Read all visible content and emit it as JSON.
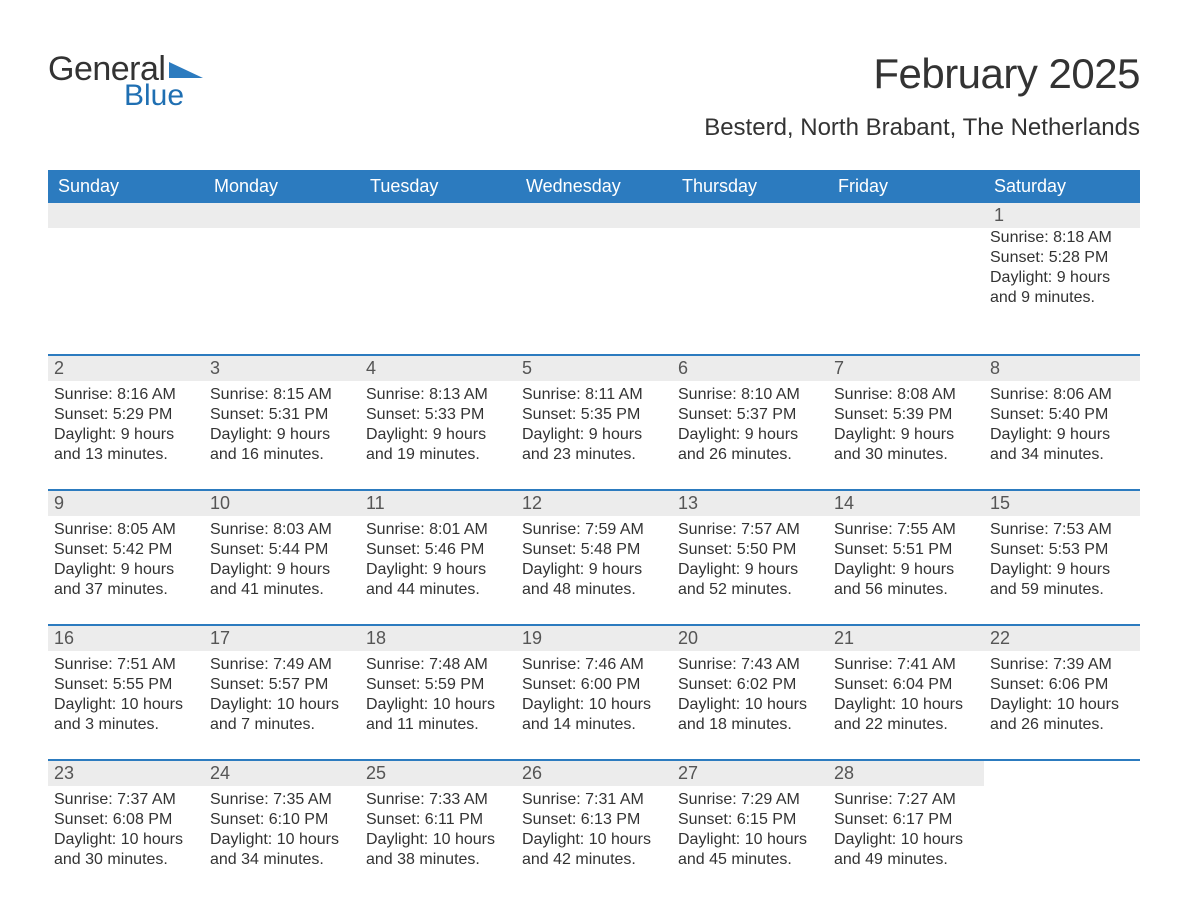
{
  "logo": {
    "text_general": "General",
    "text_blue": "Blue",
    "triangle_color": "#2c7bbf"
  },
  "header": {
    "title": "February 2025",
    "location": "Besterd, North Brabant, The Netherlands"
  },
  "colors": {
    "header_bg": "#2c7bbf",
    "header_text": "#ffffff",
    "daynum_bg": "#ececec",
    "body_text": "#333333",
    "week_border": "#2c7bbf",
    "page_bg": "#ffffff"
  },
  "day_names": [
    "Sunday",
    "Monday",
    "Tuesday",
    "Wednesday",
    "Thursday",
    "Friday",
    "Saturday"
  ],
  "weeks": [
    [
      {
        "day": "",
        "sunrise": "",
        "sunset": "",
        "daylight": ""
      },
      {
        "day": "",
        "sunrise": "",
        "sunset": "",
        "daylight": ""
      },
      {
        "day": "",
        "sunrise": "",
        "sunset": "",
        "daylight": ""
      },
      {
        "day": "",
        "sunrise": "",
        "sunset": "",
        "daylight": ""
      },
      {
        "day": "",
        "sunrise": "",
        "sunset": "",
        "daylight": ""
      },
      {
        "day": "",
        "sunrise": "",
        "sunset": "",
        "daylight": ""
      },
      {
        "day": "1",
        "sunrise": "Sunrise: 8:18 AM",
        "sunset": "Sunset: 5:28 PM",
        "daylight": "Daylight: 9 hours and 9 minutes."
      }
    ],
    [
      {
        "day": "2",
        "sunrise": "Sunrise: 8:16 AM",
        "sunset": "Sunset: 5:29 PM",
        "daylight": "Daylight: 9 hours and 13 minutes."
      },
      {
        "day": "3",
        "sunrise": "Sunrise: 8:15 AM",
        "sunset": "Sunset: 5:31 PM",
        "daylight": "Daylight: 9 hours and 16 minutes."
      },
      {
        "day": "4",
        "sunrise": "Sunrise: 8:13 AM",
        "sunset": "Sunset: 5:33 PM",
        "daylight": "Daylight: 9 hours and 19 minutes."
      },
      {
        "day": "5",
        "sunrise": "Sunrise: 8:11 AM",
        "sunset": "Sunset: 5:35 PM",
        "daylight": "Daylight: 9 hours and 23 minutes."
      },
      {
        "day": "6",
        "sunrise": "Sunrise: 8:10 AM",
        "sunset": "Sunset: 5:37 PM",
        "daylight": "Daylight: 9 hours and 26 minutes."
      },
      {
        "day": "7",
        "sunrise": "Sunrise: 8:08 AM",
        "sunset": "Sunset: 5:39 PM",
        "daylight": "Daylight: 9 hours and 30 minutes."
      },
      {
        "day": "8",
        "sunrise": "Sunrise: 8:06 AM",
        "sunset": "Sunset: 5:40 PM",
        "daylight": "Daylight: 9 hours and 34 minutes."
      }
    ],
    [
      {
        "day": "9",
        "sunrise": "Sunrise: 8:05 AM",
        "sunset": "Sunset: 5:42 PM",
        "daylight": "Daylight: 9 hours and 37 minutes."
      },
      {
        "day": "10",
        "sunrise": "Sunrise: 8:03 AM",
        "sunset": "Sunset: 5:44 PM",
        "daylight": "Daylight: 9 hours and 41 minutes."
      },
      {
        "day": "11",
        "sunrise": "Sunrise: 8:01 AM",
        "sunset": "Sunset: 5:46 PM",
        "daylight": "Daylight: 9 hours and 44 minutes."
      },
      {
        "day": "12",
        "sunrise": "Sunrise: 7:59 AM",
        "sunset": "Sunset: 5:48 PM",
        "daylight": "Daylight: 9 hours and 48 minutes."
      },
      {
        "day": "13",
        "sunrise": "Sunrise: 7:57 AM",
        "sunset": "Sunset: 5:50 PM",
        "daylight": "Daylight: 9 hours and 52 minutes."
      },
      {
        "day": "14",
        "sunrise": "Sunrise: 7:55 AM",
        "sunset": "Sunset: 5:51 PM",
        "daylight": "Daylight: 9 hours and 56 minutes."
      },
      {
        "day": "15",
        "sunrise": "Sunrise: 7:53 AM",
        "sunset": "Sunset: 5:53 PM",
        "daylight": "Daylight: 9 hours and 59 minutes."
      }
    ],
    [
      {
        "day": "16",
        "sunrise": "Sunrise: 7:51 AM",
        "sunset": "Sunset: 5:55 PM",
        "daylight": "Daylight: 10 hours and 3 minutes."
      },
      {
        "day": "17",
        "sunrise": "Sunrise: 7:49 AM",
        "sunset": "Sunset: 5:57 PM",
        "daylight": "Daylight: 10 hours and 7 minutes."
      },
      {
        "day": "18",
        "sunrise": "Sunrise: 7:48 AM",
        "sunset": "Sunset: 5:59 PM",
        "daylight": "Daylight: 10 hours and 11 minutes."
      },
      {
        "day": "19",
        "sunrise": "Sunrise: 7:46 AM",
        "sunset": "Sunset: 6:00 PM",
        "daylight": "Daylight: 10 hours and 14 minutes."
      },
      {
        "day": "20",
        "sunrise": "Sunrise: 7:43 AM",
        "sunset": "Sunset: 6:02 PM",
        "daylight": "Daylight: 10 hours and 18 minutes."
      },
      {
        "day": "21",
        "sunrise": "Sunrise: 7:41 AM",
        "sunset": "Sunset: 6:04 PM",
        "daylight": "Daylight: 10 hours and 22 minutes."
      },
      {
        "day": "22",
        "sunrise": "Sunrise: 7:39 AM",
        "sunset": "Sunset: 6:06 PM",
        "daylight": "Daylight: 10 hours and 26 minutes."
      }
    ],
    [
      {
        "day": "23",
        "sunrise": "Sunrise: 7:37 AM",
        "sunset": "Sunset: 6:08 PM",
        "daylight": "Daylight: 10 hours and 30 minutes."
      },
      {
        "day": "24",
        "sunrise": "Sunrise: 7:35 AM",
        "sunset": "Sunset: 6:10 PM",
        "daylight": "Daylight: 10 hours and 34 minutes."
      },
      {
        "day": "25",
        "sunrise": "Sunrise: 7:33 AM",
        "sunset": "Sunset: 6:11 PM",
        "daylight": "Daylight: 10 hours and 38 minutes."
      },
      {
        "day": "26",
        "sunrise": "Sunrise: 7:31 AM",
        "sunset": "Sunset: 6:13 PM",
        "daylight": "Daylight: 10 hours and 42 minutes."
      },
      {
        "day": "27",
        "sunrise": "Sunrise: 7:29 AM",
        "sunset": "Sunset: 6:15 PM",
        "daylight": "Daylight: 10 hours and 45 minutes."
      },
      {
        "day": "28",
        "sunrise": "Sunrise: 7:27 AM",
        "sunset": "Sunset: 6:17 PM",
        "daylight": "Daylight: 10 hours and 49 minutes."
      },
      {
        "day": "",
        "sunrise": "",
        "sunset": "",
        "daylight": ""
      }
    ]
  ]
}
